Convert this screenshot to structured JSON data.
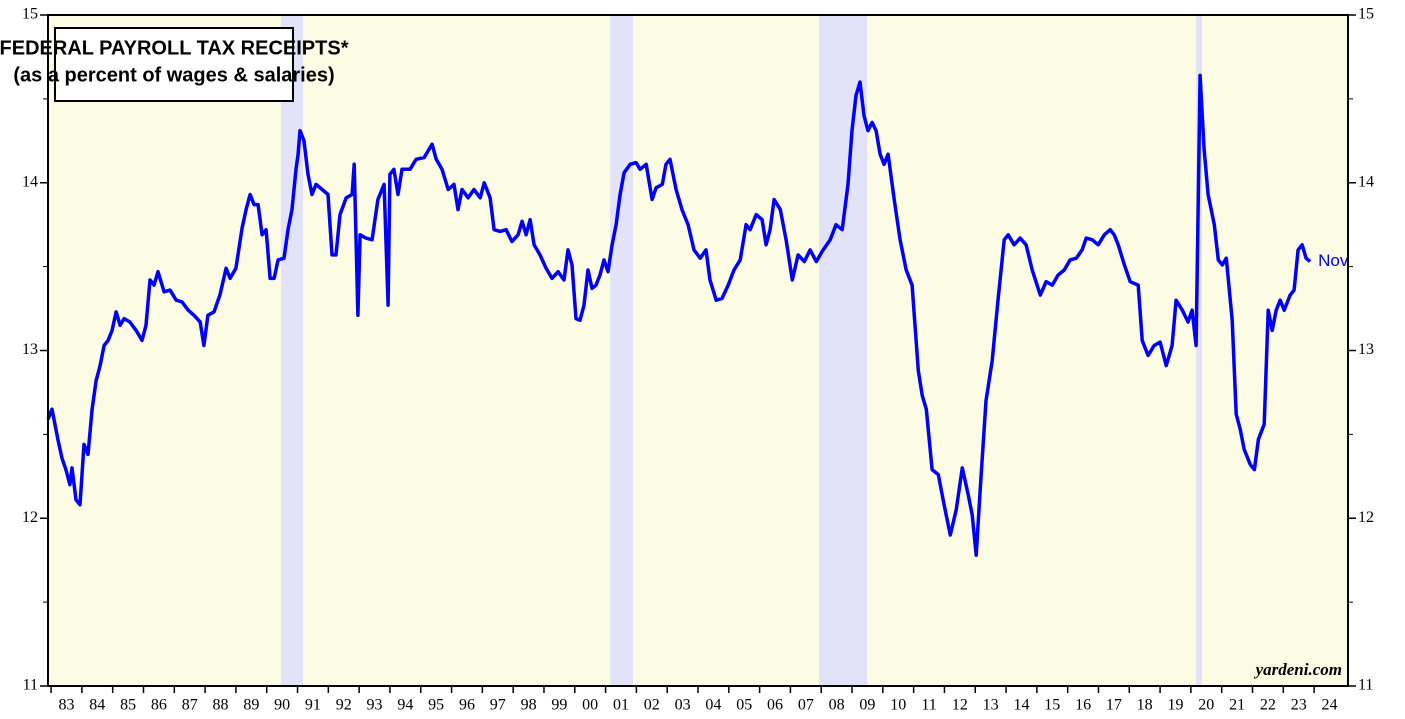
{
  "chart_data": {
    "type": "line",
    "title": "FEDERAL PAYROLL TAX RECEIPTS*",
    "subtitle": "(as a percent of wages & salaries)",
    "annotations": [
      "Nov",
      "yardeni.com"
    ],
    "background": "#fcfbe3",
    "recession_color": "#e2e2f8",
    "recessions": [
      [
        1990.46,
        1991.18
      ],
      [
        2001.15,
        2001.89
      ],
      [
        2007.93,
        2009.49
      ],
      [
        2020.17,
        2020.36
      ]
    ],
    "xlim": [
      1982.9,
      2025.1
    ],
    "ylim": [
      11,
      15
    ],
    "yticks": [
      11,
      12,
      13,
      14,
      15
    ],
    "yminor": [
      11.5,
      12.5,
      13.5,
      14.5
    ],
    "xticks": [
      {
        "value": 1983,
        "label": "83"
      },
      {
        "value": 1984,
        "label": "84"
      },
      {
        "value": 1985,
        "label": "85"
      },
      {
        "value": 1986,
        "label": "86"
      },
      {
        "value": 1987,
        "label": "87"
      },
      {
        "value": 1988,
        "label": "88"
      },
      {
        "value": 1989,
        "label": "89"
      },
      {
        "value": 1990,
        "label": "90"
      },
      {
        "value": 1991,
        "label": "91"
      },
      {
        "value": 1992,
        "label": "92"
      },
      {
        "value": 1993,
        "label": "93"
      },
      {
        "value": 1994,
        "label": "94"
      },
      {
        "value": 1995,
        "label": "95"
      },
      {
        "value": 1996,
        "label": "96"
      },
      {
        "value": 1997,
        "label": "97"
      },
      {
        "value": 1998,
        "label": "98"
      },
      {
        "value": 1999,
        "label": "99"
      },
      {
        "value": 2000,
        "label": "00"
      },
      {
        "value": 2001,
        "label": "01"
      },
      {
        "value": 2002,
        "label": "02"
      },
      {
        "value": 2003,
        "label": "03"
      },
      {
        "value": 2004,
        "label": "04"
      },
      {
        "value": 2005,
        "label": "05"
      },
      {
        "value": 2006,
        "label": "06"
      },
      {
        "value": 2007,
        "label": "07"
      },
      {
        "value": 2008,
        "label": "08"
      },
      {
        "value": 2009,
        "label": "09"
      },
      {
        "value": 2010,
        "label": "10"
      },
      {
        "value": 2011,
        "label": "11"
      },
      {
        "value": 2012,
        "label": "12"
      },
      {
        "value": 2013,
        "label": "13"
      },
      {
        "value": 2014,
        "label": "14"
      },
      {
        "value": 2015,
        "label": "15"
      },
      {
        "value": 2016,
        "label": "16"
      },
      {
        "value": 2017,
        "label": "17"
      },
      {
        "value": 2018,
        "label": "18"
      },
      {
        "value": 2019,
        "label": "19"
      },
      {
        "value": 2020,
        "label": "20"
      },
      {
        "value": 2021,
        "label": "21"
      },
      {
        "value": 2022,
        "label": "22"
      },
      {
        "value": 2023,
        "label": "23"
      },
      {
        "value": 2024,
        "label": "24"
      }
    ],
    "x": [
      1982.9,
      1983.03,
      1983.22,
      1983.35,
      1983.48,
      1983.61,
      1983.68,
      1983.81,
      1983.94,
      1984.07,
      1984.2,
      1984.33,
      1984.46,
      1984.59,
      1984.72,
      1984.85,
      1984.98,
      1985.11,
      1985.24,
      1985.37,
      1985.56,
      1985.76,
      1985.95,
      1986.08,
      1986.21,
      1986.34,
      1986.47,
      1986.67,
      1986.86,
      1987.06,
      1987.25,
      1987.45,
      1987.64,
      1987.84,
      1987.96,
      1988.09,
      1988.29,
      1988.48,
      1988.68,
      1988.81,
      1989.0,
      1989.2,
      1989.33,
      1989.46,
      1989.59,
      1989.72,
      1989.85,
      1989.98,
      1990.11,
      1990.24,
      1990.37,
      1990.56,
      1990.69,
      1990.82,
      1990.95,
      1991.02,
      1991.08,
      1991.21,
      1991.34,
      1991.47,
      1991.6,
      1991.8,
      1991.99,
      1992.12,
      1992.25,
      1992.38,
      1992.58,
      1992.77,
      1992.84,
      1992.96,
      1993.03,
      1993.22,
      1993.42,
      1993.61,
      1993.81,
      1993.94,
      1994.0,
      1994.13,
      1994.26,
      1994.39,
      1994.65,
      1994.85,
      1995.11,
      1995.37,
      1995.5,
      1995.69,
      1995.89,
      1996.08,
      1996.21,
      1996.34,
      1996.54,
      1996.73,
      1996.93,
      1997.06,
      1997.25,
      1997.38,
      1997.58,
      1997.77,
      1997.96,
      1998.16,
      1998.29,
      1998.42,
      1998.55,
      1998.68,
      1998.87,
      1999.07,
      1999.26,
      1999.46,
      1999.65,
      1999.78,
      1999.91,
      2000.04,
      2000.17,
      2000.3,
      2000.43,
      2000.56,
      2000.69,
      2000.82,
      2000.95,
      2001.08,
      2001.21,
      2001.34,
      2001.47,
      2001.6,
      2001.8,
      2001.99,
      2002.12,
      2002.32,
      2002.51,
      2002.64,
      2002.84,
      2002.96,
      2003.09,
      2003.29,
      2003.48,
      2003.68,
      2003.87,
      2004.07,
      2004.26,
      2004.39,
      2004.59,
      2004.78,
      2004.98,
      2005.17,
      2005.37,
      2005.56,
      2005.69,
      2005.89,
      2006.08,
      2006.21,
      2006.34,
      2006.47,
      2006.67,
      2006.86,
      2007.06,
      2007.25,
      2007.45,
      2007.64,
      2007.84,
      2008.03,
      2008.29,
      2008.48,
      2008.68,
      2008.87,
      2009.0,
      2009.13,
      2009.26,
      2009.39,
      2009.52,
      2009.65,
      2009.78,
      2009.91,
      2010.04,
      2010.17,
      2010.37,
      2010.56,
      2010.76,
      2010.95,
      2011.15,
      2011.28,
      2011.41,
      2011.6,
      2011.8,
      2011.99,
      2012.19,
      2012.38,
      2012.58,
      2012.77,
      2012.9,
      2013.03,
      2013.16,
      2013.35,
      2013.55,
      2013.74,
      2013.94,
      2014.07,
      2014.26,
      2014.46,
      2014.65,
      2014.85,
      2015.11,
      2015.3,
      2015.5,
      2015.69,
      2015.89,
      2016.08,
      2016.28,
      2016.47,
      2016.6,
      2016.8,
      2016.99,
      2017.19,
      2017.38,
      2017.51,
      2017.64,
      2017.84,
      2018.03,
      2018.29,
      2018.42,
      2018.61,
      2018.81,
      2019.0,
      2019.2,
      2019.39,
      2019.52,
      2019.72,
      2019.91,
      2020.04,
      2020.17,
      2020.3,
      2020.43,
      2020.56,
      2020.76,
      2020.89,
      2021.02,
      2021.15,
      2021.34,
      2021.47,
      2021.6,
      2021.73,
      2021.93,
      2022.06,
      2022.19,
      2022.38,
      2022.51,
      2022.64,
      2022.77,
      2022.9,
      2023.03,
      2023.22,
      2023.35,
      2023.48,
      2023.61,
      2023.74,
      2023.87
    ],
    "series": [
      {
        "name": "Federal payroll tax receipts",
        "color": "#0000ff",
        "values": [
          12.59,
          12.65,
          12.47,
          12.36,
          12.29,
          12.2,
          12.3,
          12.11,
          12.08,
          12.44,
          12.38,
          12.65,
          12.82,
          12.91,
          13.03,
          13.06,
          13.12,
          13.23,
          13.15,
          13.19,
          13.17,
          13.12,
          13.06,
          13.15,
          13.42,
          13.39,
          13.47,
          13.35,
          13.36,
          13.3,
          13.29,
          13.24,
          13.21,
          13.17,
          13.03,
          13.21,
          13.23,
          13.33,
          13.49,
          13.43,
          13.49,
          13.73,
          13.84,
          13.93,
          13.87,
          13.87,
          13.69,
          13.72,
          13.43,
          13.43,
          13.54,
          13.55,
          13.72,
          13.84,
          14.08,
          14.17,
          14.31,
          14.25,
          14.05,
          13.93,
          13.99,
          13.96,
          13.93,
          13.57,
          13.57,
          13.81,
          13.91,
          13.93,
          14.11,
          13.21,
          13.69,
          13.67,
          13.66,
          13.9,
          13.99,
          13.27,
          14.05,
          14.08,
          13.93,
          14.08,
          14.08,
          14.14,
          14.15,
          14.23,
          14.14,
          14.08,
          13.96,
          13.99,
          13.84,
          13.96,
          13.91,
          13.96,
          13.91,
          14.0,
          13.91,
          13.72,
          13.71,
          13.72,
          13.65,
          13.69,
          13.77,
          13.69,
          13.78,
          13.63,
          13.57,
          13.49,
          13.43,
          13.47,
          13.42,
          13.6,
          13.51,
          13.19,
          13.18,
          13.27,
          13.48,
          13.37,
          13.39,
          13.45,
          13.54,
          13.47,
          13.63,
          13.75,
          13.93,
          14.06,
          14.11,
          14.12,
          14.08,
          14.11,
          13.9,
          13.97,
          13.99,
          14.11,
          14.14,
          13.96,
          13.84,
          13.75,
          13.6,
          13.55,
          13.6,
          13.42,
          13.3,
          13.31,
          13.39,
          13.48,
          13.54,
          13.75,
          13.72,
          13.81,
          13.78,
          13.63,
          13.72,
          13.9,
          13.84,
          13.66,
          13.42,
          13.57,
          13.53,
          13.6,
          13.53,
          13.59,
          13.66,
          13.75,
          13.72,
          13.99,
          14.31,
          14.52,
          14.6,
          14.4,
          14.31,
          14.36,
          14.31,
          14.17,
          14.11,
          14.17,
          13.9,
          13.66,
          13.48,
          13.39,
          12.88,
          12.73,
          12.65,
          12.29,
          12.26,
          12.08,
          11.9,
          12.05,
          12.3,
          12.14,
          12.02,
          11.78,
          12.17,
          12.7,
          12.94,
          13.3,
          13.66,
          13.69,
          13.63,
          13.67,
          13.63,
          13.48,
          13.33,
          13.41,
          13.39,
          13.45,
          13.48,
          13.54,
          13.55,
          13.6,
          13.67,
          13.66,
          13.63,
          13.69,
          13.72,
          13.69,
          13.63,
          13.51,
          13.41,
          13.39,
          13.06,
          12.97,
          13.03,
          13.05,
          12.91,
          13.03,
          13.3,
          13.24,
          13.17,
          13.24,
          13.03,
          14.64,
          14.2,
          13.93,
          13.75,
          13.54,
          13.51,
          13.55,
          13.18,
          12.62,
          12.53,
          12.41,
          12.32,
          12.29,
          12.47,
          12.56,
          13.24,
          13.12,
          13.24,
          13.3,
          13.24,
          13.33,
          13.36,
          13.6,
          13.63,
          13.55,
          13.53
        ]
      }
    ]
  }
}
